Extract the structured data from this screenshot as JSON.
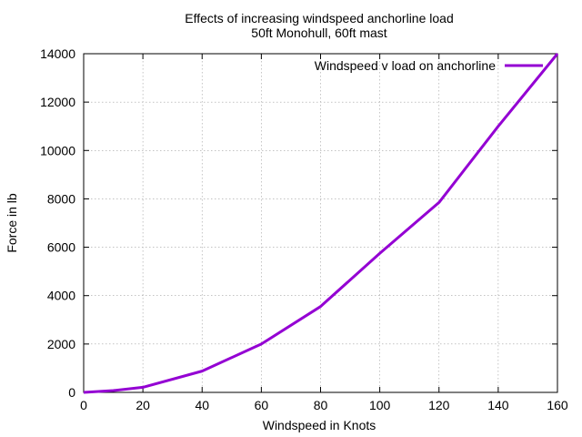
{
  "chart_data": {
    "type": "line",
    "title": "Effects of increasing windspeed anchorline load",
    "subtitle": "50ft Monohull, 60ft mast",
    "xlabel": "Windspeed in Knots",
    "ylabel": "Force in lb",
    "xlim": [
      0,
      160
    ],
    "ylim": [
      0,
      14000
    ],
    "xticks": [
      0,
      20,
      40,
      60,
      80,
      100,
      120,
      140,
      160
    ],
    "yticks": [
      0,
      2000,
      4000,
      6000,
      8000,
      10000,
      12000,
      14000
    ],
    "grid": true,
    "legend_position": "top-right",
    "series": [
      {
        "name": "Windspeed v load on anchorline",
        "color": "#9400d3",
        "x": [
          0,
          10,
          20,
          40,
          60,
          80,
          100,
          120,
          140,
          160
        ],
        "y": [
          0,
          75,
          210,
          880,
          2000,
          3550,
          5750,
          7850,
          11000,
          14000
        ]
      }
    ]
  }
}
